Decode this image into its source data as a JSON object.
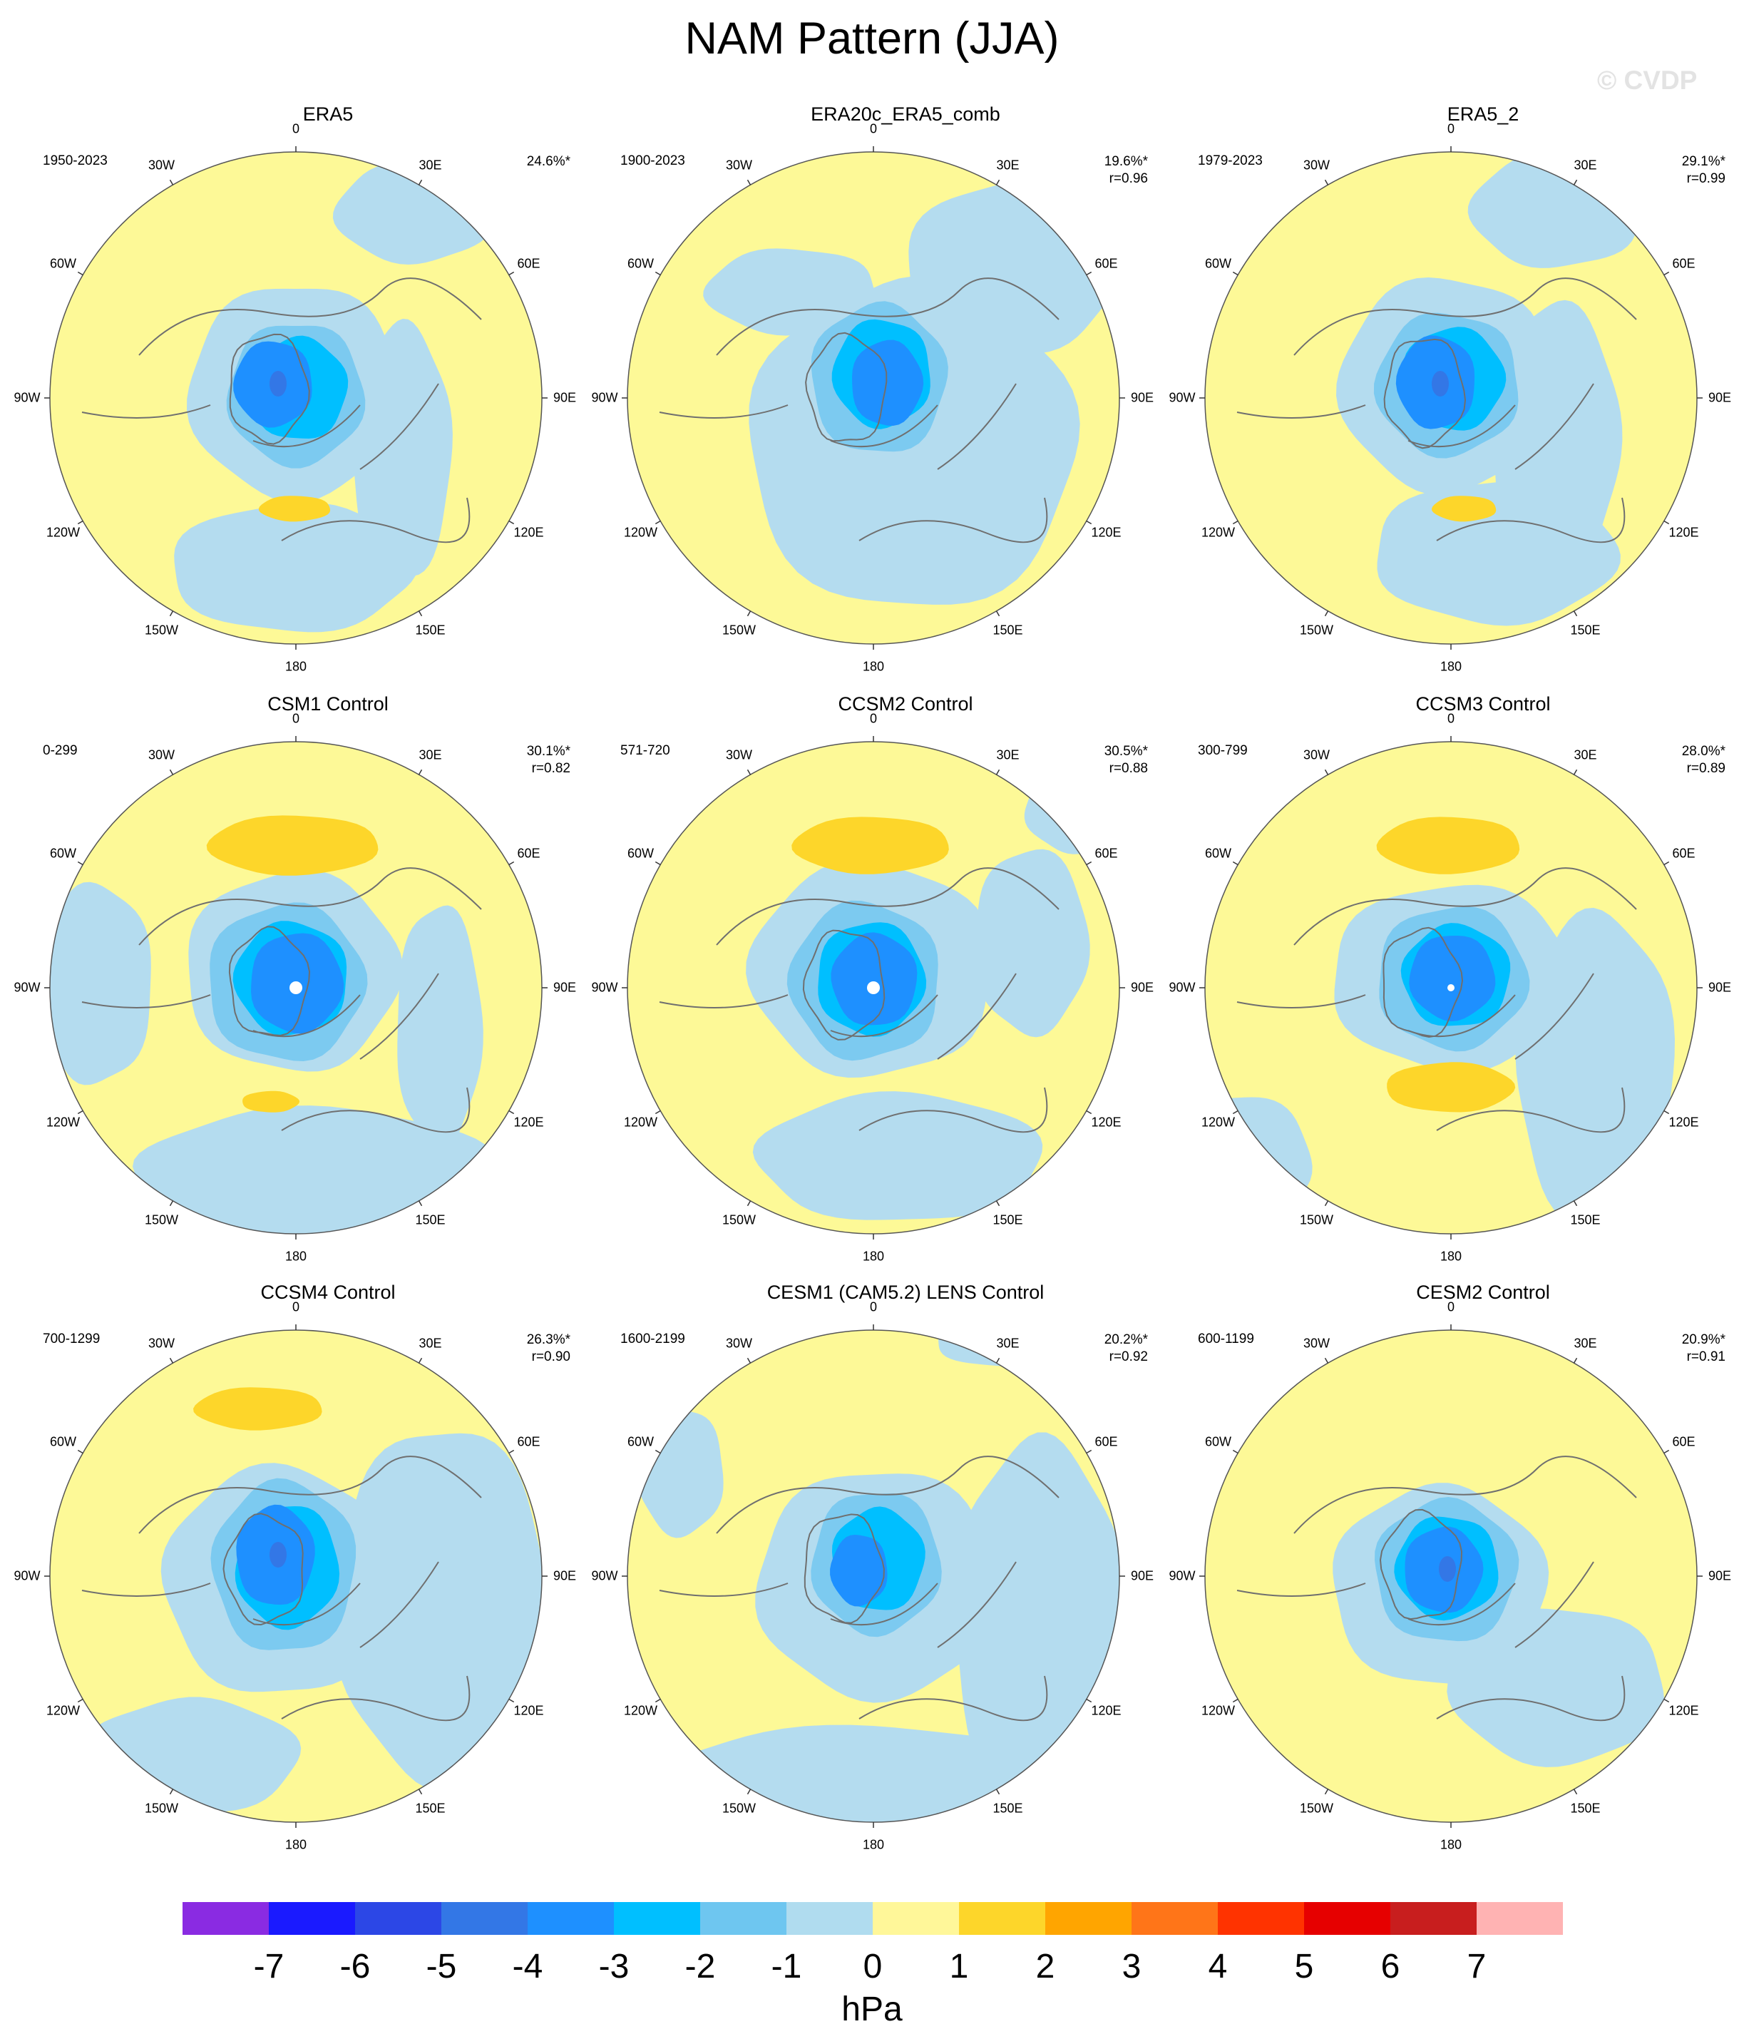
{
  "title": "NAM Pattern (JJA)",
  "watermark": "© CVDP",
  "lon_labels": [
    "180",
    "150E",
    "120E",
    "90E",
    "60E",
    "30E",
    "0",
    "30W",
    "60W",
    "90W",
    "120W",
    "150W"
  ],
  "panels": [
    {
      "title": "ERA5",
      "years": "1950-2023",
      "pct": "24.6%*",
      "r": ""
    },
    {
      "title": "ERA20c_ERA5_comb",
      "years": "1900-2023",
      "pct": "19.6%*",
      "r": "r=0.96"
    },
    {
      "title": "ERA5_2",
      "years": "1979-2023",
      "pct": "29.1%*",
      "r": "r=0.99"
    },
    {
      "title": "CSM1 Control",
      "years": "0-299",
      "pct": "30.1%*",
      "r": "r=0.82"
    },
    {
      "title": "CCSM2 Control",
      "years": "571-720",
      "pct": "30.5%*",
      "r": "r=0.88"
    },
    {
      "title": "CCSM3 Control",
      "years": "300-799",
      "pct": "28.0%*",
      "r": "r=0.89"
    },
    {
      "title": "CCSM4 Control",
      "years": "700-1299",
      "pct": "26.3%*",
      "r": "r=0.90"
    },
    {
      "title": "CESM1 (CAM5.2) LENS Control",
      "years": "1600-2199",
      "pct": "20.2%*",
      "r": "r=0.92"
    },
    {
      "title": "CESM2 Control",
      "years": "600-1199",
      "pct": "20.9%*",
      "r": "r=0.91"
    }
  ],
  "colorbar": {
    "colors": [
      "#8a2be2",
      "#1a1aff",
      "#2c47e6",
      "#3377e6",
      "#1e90ff",
      "#00bfff",
      "#6ec6f0",
      "#b0dcef",
      "#fff799",
      "#fdd62a",
      "#ffa500",
      "#ff7518",
      "#ff3300",
      "#e60000",
      "#c81e1e",
      "#ffb3b3"
    ],
    "ticks": [
      "-7",
      "-6",
      "-5",
      "-4",
      "-3",
      "-2",
      "-1",
      "0",
      "1",
      "2",
      "3",
      "4",
      "5",
      "6",
      "7"
    ],
    "unit": "hPa"
  },
  "colors": {
    "positive_fill": "#fdf997",
    "neg1": "#b4dcef",
    "neg2": "#7ccaf0",
    "neg3": "#00bfff",
    "neg4": "#1e90ff",
    "pos2": "#fdd62a",
    "coast": "#6f6f6f"
  }
}
